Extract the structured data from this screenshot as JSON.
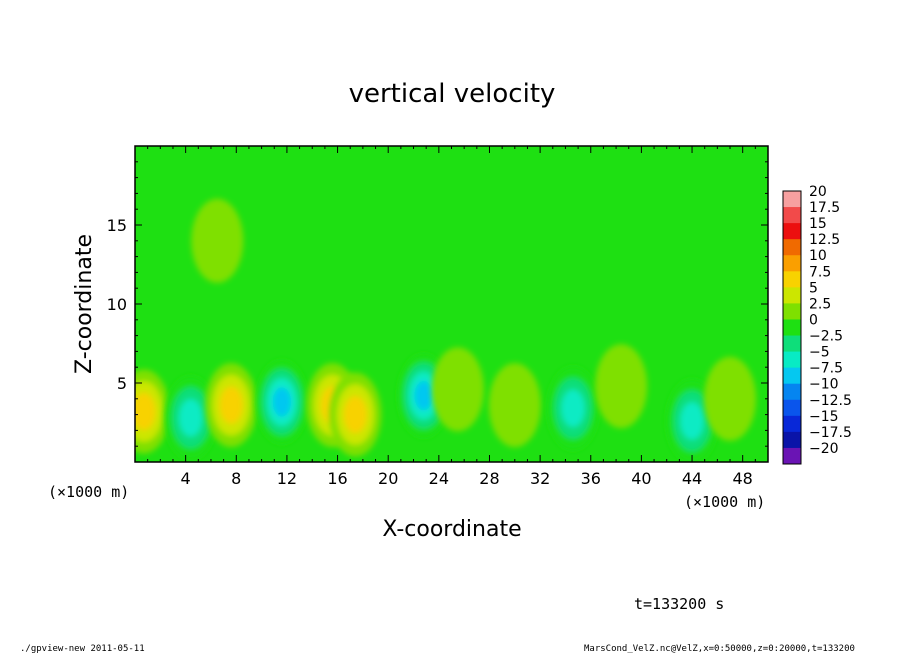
{
  "chart_data": {
    "type": "heatmap",
    "title": "vertical velocity",
    "xlabel": "X-coordinate",
    "ylabel": "Z-coordinate",
    "x_unit_left": "(×1000 m)",
    "x_unit_right": "(×1000 m)",
    "xlim": [
      0,
      50
    ],
    "ylim": [
      0,
      20
    ],
    "x_ticks": [
      "4",
      "8",
      "12",
      "16",
      "20",
      "24",
      "28",
      "32",
      "36",
      "40",
      "44",
      "48"
    ],
    "y_ticks": [
      "5",
      "10",
      "15"
    ],
    "colorbar": {
      "levels": [
        "20",
        "17.5",
        "15",
        "12.5",
        "10",
        "7.5",
        "5",
        "2.5",
        "0",
        "−2.5",
        "−5",
        "−7.5",
        "−10",
        "−12.5",
        "−15",
        "−17.5",
        "−20"
      ],
      "colors": [
        "#f7a0a0",
        "#f24a4a",
        "#ec0f0f",
        "#f06a00",
        "#fa9f00",
        "#f8d200",
        "#cce600",
        "#7fe000",
        "#1ee012",
        "#0ede7a",
        "#08ebc4",
        "#05c8f0",
        "#0585f0",
        "#0a55ec",
        "#0828d8",
        "#0a14a8",
        "#6a14b4"
      ]
    },
    "features": [
      {
        "x": 0.7,
        "z": 3.2,
        "w": 7.5
      },
      {
        "x": 4.4,
        "z": 2.8,
        "w": -8.5
      },
      {
        "x": 7.6,
        "z": 3.6,
        "w": 7.5
      },
      {
        "x": 11.6,
        "z": 3.8,
        "w": -11
      },
      {
        "x": 15.6,
        "z": 3.6,
        "w": 6.5
      },
      {
        "x": 17.4,
        "z": 3.0,
        "w": 7.0
      },
      {
        "x": 22.8,
        "z": 4.2,
        "w": -10
      },
      {
        "x": 25.5,
        "z": 4.6,
        "w": 3.0
      },
      {
        "x": 30.0,
        "z": 3.6,
        "w": 2.5
      },
      {
        "x": 34.6,
        "z": 3.4,
        "w": -7.5
      },
      {
        "x": 38.4,
        "z": 4.8,
        "w": 3.0
      },
      {
        "x": 44.0,
        "z": 2.6,
        "w": -8.0
      },
      {
        "x": 47.0,
        "z": 4.0,
        "w": 2.0
      },
      {
        "x": 6.5,
        "z": 14.0,
        "w": 2.5
      }
    ]
  },
  "footer": {
    "time_label": "t=133200 s",
    "left_info": "./gpview-new  2011-05-11",
    "right_info": "MarsCond_VelZ.nc@VelZ,x=0:50000,z=0:20000,t=133200"
  }
}
